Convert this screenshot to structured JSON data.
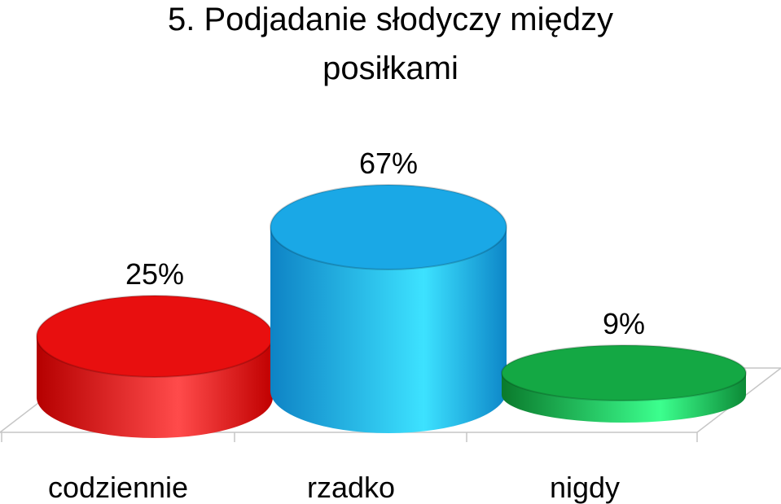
{
  "chart_data": {
    "type": "bar",
    "title_lines": [
      "5. Podjadanie słodyczy między",
      "posiłkami"
    ],
    "categories": [
      "codziennie",
      "rzadko",
      "nigdy"
    ],
    "values": [
      25,
      67,
      9
    ],
    "data_labels": [
      "25%",
      "67%",
      "9%"
    ],
    "unit": "%",
    "xlabel": "",
    "ylabel": "",
    "ylim": [
      0,
      100
    ],
    "grid": false,
    "legend": "none",
    "colors": [
      "#e80f0f",
      "#1aa8e6",
      "#14a844"
    ]
  }
}
